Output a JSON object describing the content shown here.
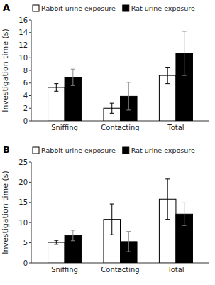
{
  "chart_data": [
    {
      "type": "bar",
      "title": "A",
      "categories": [
        "Sniffing",
        "Contacting",
        "Total"
      ],
      "series": [
        {
          "name": "Rabbit urine exposure",
          "color": "white",
          "values": [
            5.3,
            2.0,
            7.2
          ],
          "errors": [
            0.6,
            0.8,
            1.3
          ]
        },
        {
          "name": "Rat urine exposure",
          "color": "black",
          "values": [
            6.9,
            3.9,
            10.7
          ],
          "errors": [
            1.3,
            2.2,
            3.5
          ]
        }
      ],
      "ylabel": "Investigation time (s)",
      "ylim": [
        0,
        16
      ],
      "yticks": [
        0,
        2,
        4,
        6,
        8,
        10,
        12,
        14,
        16
      ],
      "grid": false,
      "legend": "top"
    },
    {
      "type": "bar",
      "title": "B",
      "categories": [
        "Sniffing",
        "Contacting",
        "Total"
      ],
      "series": [
        {
          "name": "Rabbit urine exposure",
          "color": "white",
          "values": [
            5.1,
            10.8,
            15.8
          ],
          "errors": [
            0.5,
            3.8,
            5.0
          ]
        },
        {
          "name": "Rat urine exposure",
          "color": "black",
          "values": [
            6.8,
            5.3,
            12.1
          ],
          "errors": [
            1.3,
            2.5,
            2.8
          ]
        }
      ],
      "ylabel": "Investigation time (s)",
      "ylim": [
        0,
        25
      ],
      "yticks": [
        0,
        5,
        10,
        15,
        20,
        25
      ],
      "grid": false,
      "legend": "top"
    }
  ]
}
